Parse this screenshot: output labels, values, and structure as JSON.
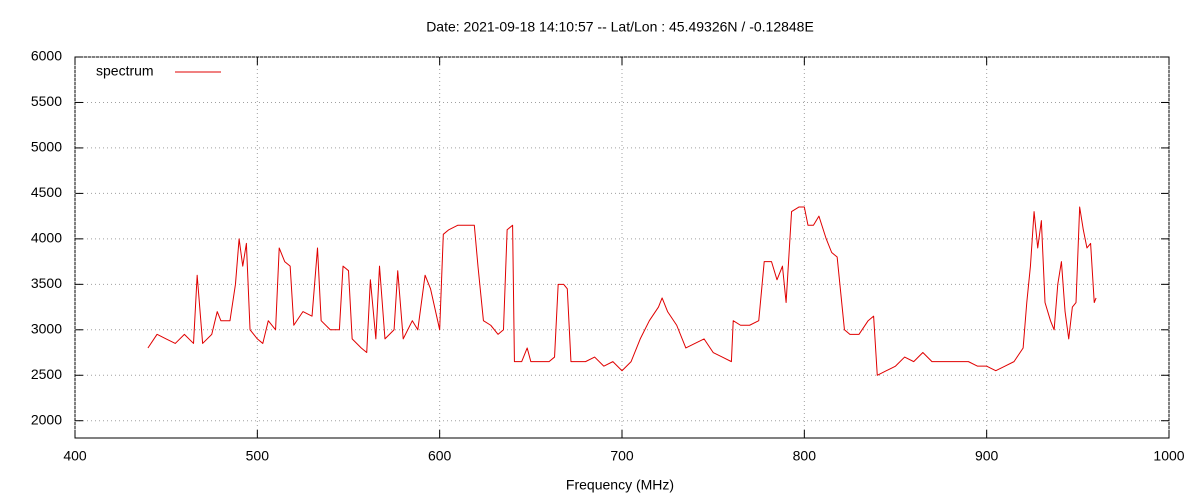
{
  "chart_data": {
    "type": "line",
    "title": "Date: 2021-09-18 14:10:57  --  Lat/Lon : 45.49326N / -0.12848E",
    "x_label": "Frequency (MHz)",
    "xlim": [
      400,
      1000
    ],
    "xticks": [
      400,
      500,
      600,
      700,
      800,
      900,
      1000
    ],
    "ylim": [
      1810,
      6000
    ],
    "yticks": [
      2000,
      2500,
      3000,
      3500,
      4000,
      4500,
      5000,
      5500,
      6000
    ],
    "grid": true,
    "legend": "top-left",
    "x": [
      440,
      445,
      450,
      455,
      460,
      465,
      467,
      470,
      475,
      478,
      480,
      485,
      488,
      490,
      492,
      494,
      496,
      500,
      503,
      506,
      510,
      512,
      515,
      518,
      520,
      525,
      530,
      533,
      535,
      540,
      545,
      547,
      550,
      552,
      557,
      560,
      562,
      565,
      567,
      570,
      575,
      577,
      580,
      585,
      588,
      592,
      595,
      600,
      602,
      605,
      610,
      615,
      619,
      621,
      624,
      628,
      632,
      635,
      637,
      640,
      641,
      645,
      648,
      650,
      655,
      660,
      663,
      665,
      668,
      670,
      672,
      675,
      680,
      685,
      690,
      695,
      700,
      705,
      710,
      715,
      720,
      722,
      725,
      730,
      735,
      740,
      745,
      750,
      755,
      760,
      761,
      765,
      770,
      775,
      778,
      782,
      785,
      788,
      790,
      793,
      797,
      800,
      802,
      805,
      808,
      812,
      815,
      818,
      820,
      822,
      825,
      830,
      835,
      838,
      840,
      845,
      850,
      855,
      860,
      865,
      870,
      875,
      880,
      885,
      890,
      895,
      900,
      905,
      910,
      915,
      920,
      922,
      924,
      926,
      928,
      930,
      932,
      935,
      937,
      939,
      941,
      943,
      945,
      947,
      949,
      951,
      953,
      955,
      957,
      959,
      960
    ],
    "series": [
      {
        "name": "spectrum",
        "color": "#e00000",
        "values": [
          2800,
          2950,
          2900,
          2850,
          2950,
          2850,
          3600,
          2850,
          2950,
          3200,
          3100,
          3100,
          3500,
          4000,
          3700,
          3950,
          3000,
          2900,
          2850,
          3100,
          3000,
          3900,
          3750,
          3700,
          3050,
          3200,
          3150,
          3900,
          3100,
          3000,
          3000,
          3700,
          3650,
          2900,
          2800,
          2750,
          3550,
          2900,
          3700,
          2900,
          3000,
          3650,
          2900,
          3100,
          3000,
          3600,
          3450,
          3000,
          4050,
          4100,
          4150,
          4150,
          4150,
          3700,
          3100,
          3050,
          2950,
          3000,
          4100,
          4150,
          2650,
          2650,
          2800,
          2650,
          2650,
          2650,
          2700,
          3500,
          3500,
          3450,
          2650,
          2650,
          2650,
          2700,
          2600,
          2650,
          2550,
          2650,
          2900,
          3100,
          3250,
          3350,
          3200,
          3050,
          2800,
          2850,
          2900,
          2750,
          2700,
          2650,
          3100,
          3050,
          3050,
          3100,
          3750,
          3750,
          3550,
          3700,
          3300,
          4300,
          4350,
          4350,
          4150,
          4150,
          4250,
          4000,
          3850,
          3800,
          3400,
          3000,
          2950,
          2950,
          3100,
          3150,
          2500,
          2550,
          2600,
          2700,
          2650,
          2750,
          2650,
          2650,
          2650,
          2650,
          2650,
          2600,
          2600,
          2550,
          2600,
          2650,
          2800,
          3300,
          3700,
          4300,
          3900,
          4200,
          3300,
          3100,
          3000,
          3500,
          3750,
          3200,
          2900,
          3250,
          3300,
          4350,
          4100,
          3900,
          3950,
          3300,
          3350
        ]
      }
    ]
  }
}
